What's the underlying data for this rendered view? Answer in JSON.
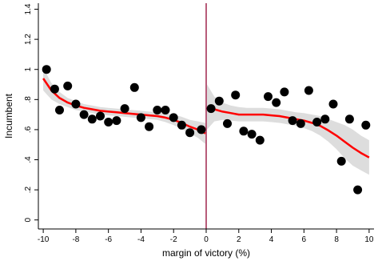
{
  "chart_data": {
    "type": "scatter",
    "title": "",
    "xlabel": "margin of victory (%)",
    "ylabel": "Incumbent",
    "xlim": [
      -10.3,
      10.3
    ],
    "ylim": [
      -0.06,
      1.44
    ],
    "x_ticks": [
      -10,
      -8,
      -6,
      -4,
      -2,
      0,
      2,
      4,
      6,
      8,
      10
    ],
    "y_ticks": [
      0,
      0.2,
      0.4,
      0.6,
      0.8,
      1,
      1.2,
      1.4
    ],
    "y_tick_labels": [
      "0",
      ".2",
      ".4",
      ".6",
      ".8",
      "1",
      "1.2",
      "1.4"
    ],
    "cutoff_x": 0,
    "colors": {
      "points": "#000000",
      "fit": "#ff0000",
      "band": "#d9d9d9",
      "cutoff": "#a0264f"
    },
    "points": [
      [
        -9.8,
        1.0
      ],
      [
        -9.3,
        0.87
      ],
      [
        -9.0,
        0.73
      ],
      [
        -8.5,
        0.89
      ],
      [
        -8.0,
        0.77
      ],
      [
        -7.5,
        0.7
      ],
      [
        -7.0,
        0.67
      ],
      [
        -6.5,
        0.69
      ],
      [
        -6.0,
        0.65
      ],
      [
        -5.5,
        0.66
      ],
      [
        -5.0,
        0.74
      ],
      [
        -4.4,
        0.88
      ],
      [
        -4.0,
        0.68
      ],
      [
        -3.5,
        0.62
      ],
      [
        -3.0,
        0.73
      ],
      [
        -2.5,
        0.73
      ],
      [
        -2.0,
        0.68
      ],
      [
        -1.5,
        0.63
      ],
      [
        -1.0,
        0.58
      ],
      [
        -0.3,
        0.6
      ],
      [
        0.3,
        0.74
      ],
      [
        0.8,
        0.79
      ],
      [
        1.3,
        0.64
      ],
      [
        1.8,
        0.83
      ],
      [
        2.3,
        0.59
      ],
      [
        2.8,
        0.57
      ],
      [
        3.3,
        0.53
      ],
      [
        3.8,
        0.82
      ],
      [
        4.3,
        0.78
      ],
      [
        4.8,
        0.85
      ],
      [
        5.3,
        0.66
      ],
      [
        5.8,
        0.64
      ],
      [
        6.3,
        0.86
      ],
      [
        6.8,
        0.65
      ],
      [
        7.3,
        0.67
      ],
      [
        7.8,
        0.77
      ],
      [
        8.3,
        0.39
      ],
      [
        8.8,
        0.67
      ],
      [
        9.3,
        0.2
      ],
      [
        9.8,
        0.63
      ]
    ],
    "fit_left": [
      [
        -10,
        0.94
      ],
      [
        -9.5,
        0.86
      ],
      [
        -9,
        0.81
      ],
      [
        -8.5,
        0.78
      ],
      [
        -8,
        0.76
      ],
      [
        -7.5,
        0.745
      ],
      [
        -7,
        0.735
      ],
      [
        -6.5,
        0.725
      ],
      [
        -6,
        0.72
      ],
      [
        -5.5,
        0.715
      ],
      [
        -5,
        0.71
      ],
      [
        -4.5,
        0.705
      ],
      [
        -4,
        0.7
      ],
      [
        -3.5,
        0.695
      ],
      [
        -3,
        0.69
      ],
      [
        -2.5,
        0.68
      ],
      [
        -2,
        0.665
      ],
      [
        -1.5,
        0.645
      ],
      [
        -1,
        0.62
      ],
      [
        -0.5,
        0.6
      ],
      [
        -0.05,
        0.575
      ]
    ],
    "band_left": [
      [
        -10,
        1.01,
        0.86
      ],
      [
        -9.5,
        0.91,
        0.8
      ],
      [
        -9,
        0.85,
        0.77
      ],
      [
        -8.5,
        0.81,
        0.75
      ],
      [
        -8,
        0.79,
        0.73
      ],
      [
        -7.5,
        0.77,
        0.72
      ],
      [
        -7,
        0.76,
        0.71
      ],
      [
        -6.5,
        0.75,
        0.7
      ],
      [
        -6,
        0.745,
        0.695
      ],
      [
        -5.5,
        0.74,
        0.69
      ],
      [
        -5,
        0.735,
        0.685
      ],
      [
        -4.5,
        0.73,
        0.68
      ],
      [
        -4,
        0.725,
        0.675
      ],
      [
        -3.5,
        0.72,
        0.67
      ],
      [
        -3,
        0.715,
        0.665
      ],
      [
        -2.5,
        0.71,
        0.65
      ],
      [
        -2,
        0.7,
        0.63
      ],
      [
        -1.5,
        0.685,
        0.605
      ],
      [
        -1,
        0.665,
        0.575
      ],
      [
        -0.5,
        0.655,
        0.545
      ],
      [
        -0.05,
        0.645,
        0.505
      ]
    ],
    "fit_right": [
      [
        0.05,
        0.745
      ],
      [
        0.5,
        0.735
      ],
      [
        1,
        0.72
      ],
      [
        1.5,
        0.71
      ],
      [
        2,
        0.7
      ],
      [
        2.5,
        0.7
      ],
      [
        3,
        0.7
      ],
      [
        3.5,
        0.7
      ],
      [
        4,
        0.695
      ],
      [
        4.5,
        0.69
      ],
      [
        5,
        0.68
      ],
      [
        5.5,
        0.67
      ],
      [
        6,
        0.66
      ],
      [
        6.5,
        0.645
      ],
      [
        7,
        0.625
      ],
      [
        7.5,
        0.595
      ],
      [
        8,
        0.56
      ],
      [
        8.5,
        0.52
      ],
      [
        9,
        0.48
      ],
      [
        9.5,
        0.445
      ],
      [
        10,
        0.415
      ]
    ],
    "band_right": [
      [
        0.05,
        0.9,
        0.6
      ],
      [
        0.5,
        0.82,
        0.655
      ],
      [
        1,
        0.78,
        0.665
      ],
      [
        1.5,
        0.76,
        0.66
      ],
      [
        2,
        0.75,
        0.655
      ],
      [
        2.5,
        0.745,
        0.655
      ],
      [
        3,
        0.745,
        0.655
      ],
      [
        3.5,
        0.745,
        0.655
      ],
      [
        4,
        0.74,
        0.65
      ],
      [
        4.5,
        0.735,
        0.645
      ],
      [
        5,
        0.725,
        0.635
      ],
      [
        5.5,
        0.715,
        0.625
      ],
      [
        6,
        0.71,
        0.61
      ],
      [
        6.5,
        0.7,
        0.59
      ],
      [
        7,
        0.69,
        0.56
      ],
      [
        7.5,
        0.67,
        0.52
      ],
      [
        8,
        0.65,
        0.47
      ],
      [
        8.5,
        0.63,
        0.41
      ],
      [
        9,
        0.6,
        0.36
      ],
      [
        9.5,
        0.56,
        0.33
      ],
      [
        10,
        0.53,
        0.3
      ]
    ]
  }
}
